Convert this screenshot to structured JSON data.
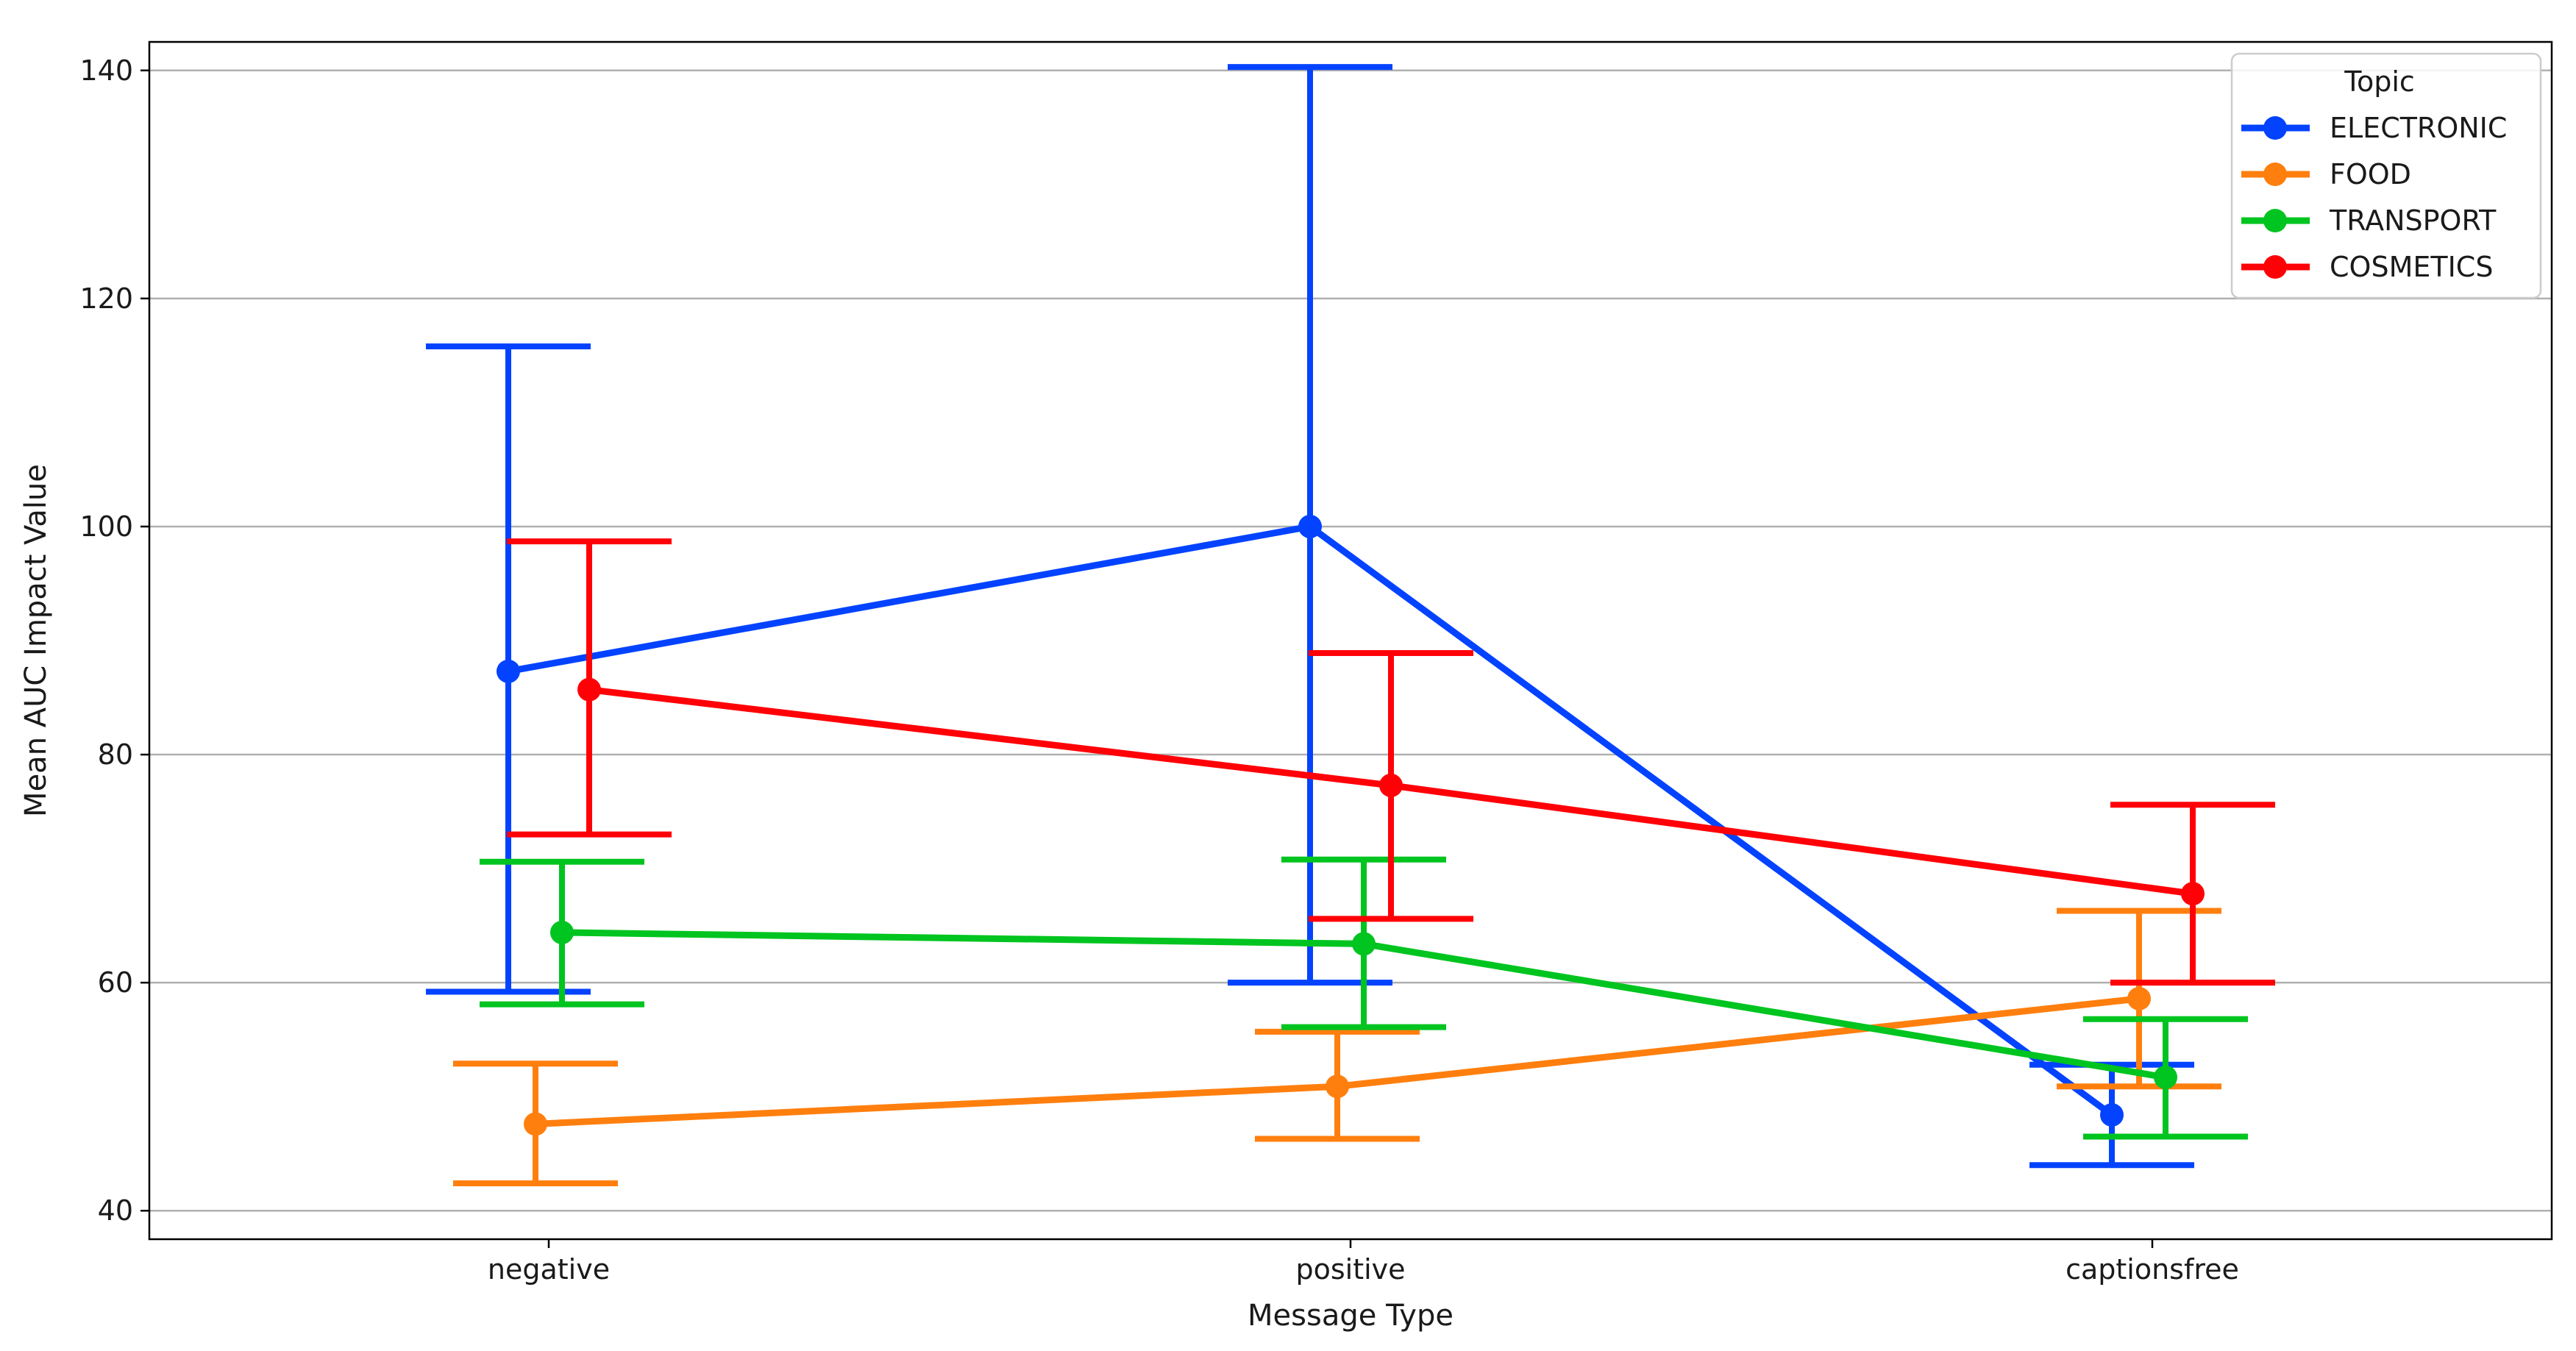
{
  "chart_data": {
    "type": "line",
    "title": "",
    "xlabel": "Message Type",
    "ylabel": "Mean AUC Impact Value",
    "categories": [
      "negative",
      "positive",
      "captionsfree"
    ],
    "ylim": [
      37.5,
      142.5
    ],
    "yticks": [
      40,
      60,
      80,
      100,
      120,
      140
    ],
    "grid": "horizontal",
    "legend": {
      "title": "Topic",
      "position": "top-right"
    },
    "error_bars": true,
    "series": [
      {
        "name": "ELECTRONIC",
        "color": "#0343ff",
        "values": [
          87.3,
          100.0,
          48.4
        ],
        "lower": [
          59.2,
          60.0,
          44.0
        ],
        "upper": [
          115.8,
          140.3,
          52.8
        ]
      },
      {
        "name": "FOOD",
        "color": "#ff7f0e",
        "values": [
          47.6,
          50.9,
          58.6
        ],
        "lower": [
          42.4,
          46.3,
          50.9
        ],
        "upper": [
          52.9,
          55.7,
          66.3
        ]
      },
      {
        "name": "TRANSPORT",
        "color": "#00c41f",
        "values": [
          64.4,
          63.4,
          51.7
        ],
        "lower": [
          58.1,
          56.1,
          46.5
        ],
        "upper": [
          70.6,
          70.8,
          56.8
        ]
      },
      {
        "name": "COSMETICS",
        "color": "#ff0007",
        "values": [
          85.7,
          77.3,
          67.8
        ],
        "lower": [
          73.0,
          65.6,
          60.0
        ],
        "upper": [
          98.7,
          88.9,
          75.6
        ]
      }
    ]
  }
}
